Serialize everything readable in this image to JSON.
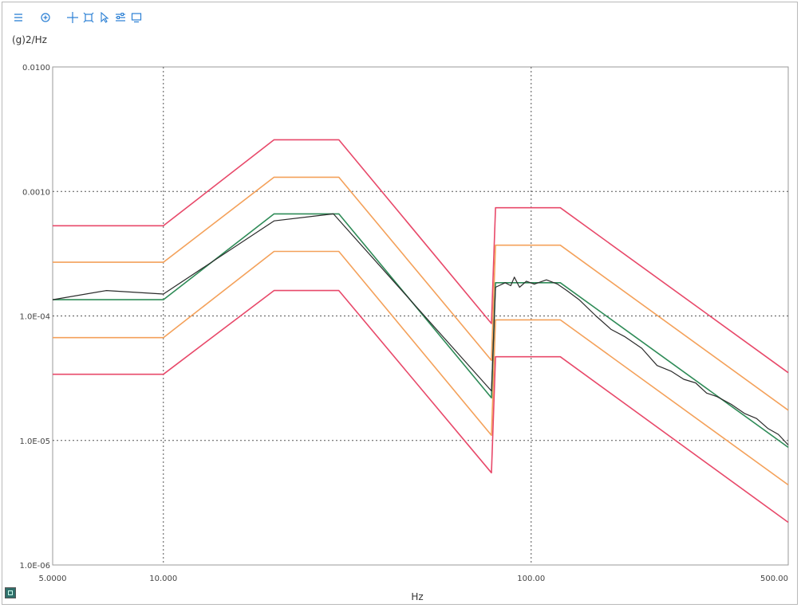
{
  "toolbar": {
    "icons": [
      "menu-icon",
      "zoom-icon",
      "crosshair-icon",
      "fit-icon",
      "cursor-icon",
      "settings-icon",
      "display-icon"
    ],
    "color": "#2a7fd4"
  },
  "chart_data": {
    "type": "line",
    "title": "",
    "xlabel": "Hz",
    "ylabel": "(g)2/Hz",
    "xscale": "log",
    "yscale": "log",
    "xlim": [
      5,
      500
    ],
    "ylim": [
      1e-06,
      0.01
    ],
    "grid": true,
    "x_tick_labels": [
      {
        "value": 5,
        "label": "5.0000"
      },
      {
        "value": 10,
        "label": "10.000"
      },
      {
        "value": 100,
        "label": "100.00"
      },
      {
        "value": 500,
        "label": "500.00"
      }
    ],
    "y_tick_labels": [
      {
        "value": 0.01,
        "label": "0.0100"
      },
      {
        "value": 0.001,
        "label": "0.0010"
      },
      {
        "value": 0.0001,
        "label": "1.0E-04"
      },
      {
        "value": 1e-05,
        "label": "1.0E-05"
      },
      {
        "value": 1e-06,
        "label": "1.0E-06"
      }
    ],
    "series": [
      {
        "color": "#e8496a",
        "points": [
          [
            5,
            0.00053
          ],
          [
            10,
            0.00053
          ],
          [
            20,
            0.0026
          ],
          [
            30,
            0.0026
          ],
          [
            78,
            8.7e-05
          ],
          [
            80,
            0.00074
          ],
          [
            120,
            0.00074
          ],
          [
            500,
            3.5e-05
          ]
        ]
      },
      {
        "color": "#f4a15a",
        "points": [
          [
            5,
            0.00027
          ],
          [
            10,
            0.00027
          ],
          [
            20,
            0.0013
          ],
          [
            30,
            0.0013
          ],
          [
            78,
            4.4e-05
          ],
          [
            80,
            0.00037
          ],
          [
            120,
            0.00037
          ],
          [
            500,
            1.75e-05
          ]
        ]
      },
      {
        "color": "#f4a15a",
        "points": [
          [
            5,
            6.7e-05
          ],
          [
            10,
            6.7e-05
          ],
          [
            20,
            0.00033
          ],
          [
            30,
            0.00033
          ],
          [
            78,
            1.1e-05
          ],
          [
            80,
            9.3e-05
          ],
          [
            120,
            9.3e-05
          ],
          [
            500,
            4.4e-06
          ]
        ]
      },
      {
        "color": "#e8496a",
        "points": [
          [
            5,
            3.4e-05
          ],
          [
            10,
            3.4e-05
          ],
          [
            20,
            0.00016
          ],
          [
            30,
            0.00016
          ],
          [
            78,
            5.5e-06
          ],
          [
            80,
            4.7e-05
          ],
          [
            120,
            4.7e-05
          ],
          [
            500,
            2.2e-06
          ]
        ]
      },
      {
        "color": "#2e8b57",
        "points": [
          [
            5,
            0.000135
          ],
          [
            10,
            0.000135
          ],
          [
            20,
            0.00066
          ],
          [
            30,
            0.00066
          ],
          [
            78,
            2.2e-05
          ],
          [
            80,
            0.000185
          ],
          [
            120,
            0.000185
          ],
          [
            500,
            8.8e-06
          ]
        ]
      },
      {
        "color": "#2b2b2b",
        "points": [
          [
            5,
            0.000135
          ],
          [
            7,
            0.00016
          ],
          [
            10,
            0.00015
          ],
          [
            20,
            0.00058
          ],
          [
            29,
            0.00066
          ],
          [
            78,
            2.5e-05
          ],
          [
            80,
            0.00017
          ],
          [
            85,
            0.000185
          ],
          [
            88,
            0.000175
          ],
          [
            90,
            0.000205
          ],
          [
            93,
            0.00017
          ],
          [
            97,
            0.00019
          ],
          [
            102,
            0.00018
          ],
          [
            110,
            0.000195
          ],
          [
            118,
            0.00018
          ],
          [
            125,
            0.00016
          ],
          [
            135,
            0.000135
          ],
          [
            150,
            0.0001
          ],
          [
            165,
            7.8e-05
          ],
          [
            180,
            6.8e-05
          ],
          [
            200,
            5.5e-05
          ],
          [
            220,
            4e-05
          ],
          [
            240,
            3.6e-05
          ],
          [
            260,
            3.1e-05
          ],
          [
            280,
            2.9e-05
          ],
          [
            300,
            2.4e-05
          ],
          [
            320,
            2.25e-05
          ],
          [
            350,
            1.95e-05
          ],
          [
            380,
            1.65e-05
          ],
          [
            410,
            1.5e-05
          ],
          [
            440,
            1.25e-05
          ],
          [
            470,
            1.12e-05
          ],
          [
            500,
            9.2e-06
          ]
        ]
      }
    ]
  }
}
